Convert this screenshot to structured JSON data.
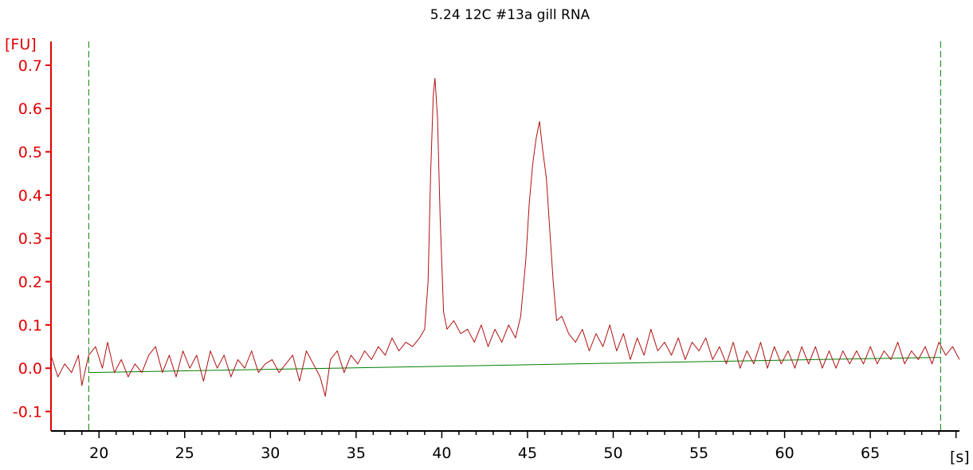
{
  "chart_data": {
    "type": "line",
    "title": "5.24 12C #13a gill RNA",
    "y_unit_label": "[FU]",
    "x_unit_label": "[s]",
    "xlim": [
      17.2,
      70.2
    ],
    "ylim": [
      -0.145,
      0.755
    ],
    "x_ticks": [
      20,
      25,
      30,
      35,
      40,
      45,
      50,
      55,
      60,
      65
    ],
    "y_ticks": [
      -0.1,
      0.0,
      0.1,
      0.2,
      0.3,
      0.4,
      0.5,
      0.6,
      0.7
    ],
    "y_tick_labels": [
      "-0.1",
      "0.0",
      "0.1",
      "0.2",
      "0.3",
      "0.4",
      "0.5",
      "0.6",
      "0.7"
    ],
    "x_tick_labels": [
      "20",
      "25",
      "30",
      "35",
      "40",
      "45",
      "50",
      "55",
      "60",
      "65"
    ],
    "grid": false,
    "markers": [
      19.4,
      69.1
    ],
    "colors": {
      "signal": "#b01010",
      "baseline": "#008000",
      "marker": "#008000",
      "y_axis": "#e00000",
      "x_axis": "#000000"
    },
    "peaks": [
      {
        "x": 39.6,
        "y": 0.67
      },
      {
        "x": 45.7,
        "y": 0.57
      }
    ],
    "baseline": {
      "start": [
        19.4,
        -0.01
      ],
      "end": [
        69.1,
        0.025
      ]
    },
    "series": [
      {
        "values": [
          [
            17.2,
            0.03
          ],
          [
            17.6,
            -0.02
          ],
          [
            18.0,
            0.01
          ],
          [
            18.4,
            -0.01
          ],
          [
            18.8,
            0.03
          ],
          [
            19.0,
            -0.04
          ],
          [
            19.4,
            0.03
          ],
          [
            19.8,
            0.05
          ],
          [
            20.2,
            0.0
          ],
          [
            20.5,
            0.06
          ],
          [
            20.9,
            -0.01
          ],
          [
            21.3,
            0.02
          ],
          [
            21.7,
            -0.02
          ],
          [
            22.1,
            0.01
          ],
          [
            22.5,
            -0.01
          ],
          [
            22.9,
            0.03
          ],
          [
            23.3,
            0.05
          ],
          [
            23.7,
            -0.01
          ],
          [
            24.1,
            0.03
          ],
          [
            24.5,
            -0.02
          ],
          [
            24.9,
            0.04
          ],
          [
            25.3,
            0.0
          ],
          [
            25.7,
            0.03
          ],
          [
            26.1,
            -0.03
          ],
          [
            26.5,
            0.04
          ],
          [
            26.9,
            0.0
          ],
          [
            27.3,
            0.03
          ],
          [
            27.7,
            -0.02
          ],
          [
            28.1,
            0.02
          ],
          [
            28.5,
            0.0
          ],
          [
            28.9,
            0.04
          ],
          [
            29.3,
            -0.01
          ],
          [
            29.7,
            0.01
          ],
          [
            30.1,
            0.02
          ],
          [
            30.5,
            -0.01
          ],
          [
            30.9,
            0.01
          ],
          [
            31.3,
            0.03
          ],
          [
            31.7,
            -0.03
          ],
          [
            32.1,
            0.04
          ],
          [
            32.5,
            0.01
          ],
          [
            32.9,
            -0.02
          ],
          [
            33.2,
            -0.065
          ],
          [
            33.5,
            0.02
          ],
          [
            33.9,
            0.04
          ],
          [
            34.3,
            -0.01
          ],
          [
            34.7,
            0.03
          ],
          [
            35.1,
            0.01
          ],
          [
            35.5,
            0.04
          ],
          [
            35.9,
            0.02
          ],
          [
            36.3,
            0.05
          ],
          [
            36.7,
            0.03
          ],
          [
            37.1,
            0.07
          ],
          [
            37.5,
            0.04
          ],
          [
            37.9,
            0.06
          ],
          [
            38.3,
            0.05
          ],
          [
            38.7,
            0.07
          ],
          [
            39.0,
            0.09
          ],
          [
            39.2,
            0.2
          ],
          [
            39.35,
            0.45
          ],
          [
            39.5,
            0.63
          ],
          [
            39.6,
            0.67
          ],
          [
            39.75,
            0.58
          ],
          [
            39.9,
            0.35
          ],
          [
            40.1,
            0.13
          ],
          [
            40.3,
            0.09
          ],
          [
            40.7,
            0.11
          ],
          [
            41.1,
            0.08
          ],
          [
            41.5,
            0.09
          ],
          [
            41.9,
            0.06
          ],
          [
            42.3,
            0.1
          ],
          [
            42.7,
            0.05
          ],
          [
            43.1,
            0.09
          ],
          [
            43.5,
            0.06
          ],
          [
            43.9,
            0.1
          ],
          [
            44.3,
            0.07
          ],
          [
            44.6,
            0.12
          ],
          [
            44.9,
            0.25
          ],
          [
            45.1,
            0.38
          ],
          [
            45.3,
            0.47
          ],
          [
            45.5,
            0.53
          ],
          [
            45.7,
            0.57
          ],
          [
            45.9,
            0.5
          ],
          [
            46.1,
            0.44
          ],
          [
            46.3,
            0.32
          ],
          [
            46.5,
            0.2
          ],
          [
            46.7,
            0.11
          ],
          [
            47.0,
            0.12
          ],
          [
            47.4,
            0.08
          ],
          [
            47.8,
            0.06
          ],
          [
            48.2,
            0.09
          ],
          [
            48.6,
            0.04
          ],
          [
            49.0,
            0.08
          ],
          [
            49.4,
            0.05
          ],
          [
            49.8,
            0.1
          ],
          [
            50.2,
            0.04
          ],
          [
            50.6,
            0.08
          ],
          [
            51.0,
            0.02
          ],
          [
            51.4,
            0.07
          ],
          [
            51.8,
            0.03
          ],
          [
            52.2,
            0.09
          ],
          [
            52.6,
            0.04
          ],
          [
            53.0,
            0.06
          ],
          [
            53.4,
            0.03
          ],
          [
            53.8,
            0.07
          ],
          [
            54.2,
            0.02
          ],
          [
            54.6,
            0.06
          ],
          [
            55.0,
            0.04
          ],
          [
            55.4,
            0.07
          ],
          [
            55.8,
            0.02
          ],
          [
            56.2,
            0.05
          ],
          [
            56.6,
            0.01
          ],
          [
            57.0,
            0.06
          ],
          [
            57.4,
            0.0
          ],
          [
            57.8,
            0.04
          ],
          [
            58.2,
            0.01
          ],
          [
            58.6,
            0.06
          ],
          [
            59.0,
            0.0
          ],
          [
            59.4,
            0.05
          ],
          [
            59.8,
            0.01
          ],
          [
            60.2,
            0.04
          ],
          [
            60.6,
            0.0
          ],
          [
            61.0,
            0.05
          ],
          [
            61.4,
            0.01
          ],
          [
            61.8,
            0.05
          ],
          [
            62.2,
            0.0
          ],
          [
            62.6,
            0.04
          ],
          [
            63.0,
            0.0
          ],
          [
            63.4,
            0.04
          ],
          [
            63.8,
            0.01
          ],
          [
            64.2,
            0.04
          ],
          [
            64.6,
            0.01
          ],
          [
            65.0,
            0.05
          ],
          [
            65.4,
            0.01
          ],
          [
            65.8,
            0.04
          ],
          [
            66.2,
            0.02
          ],
          [
            66.6,
            0.06
          ],
          [
            67.0,
            0.01
          ],
          [
            67.4,
            0.04
          ],
          [
            67.8,
            0.02
          ],
          [
            68.2,
            0.05
          ],
          [
            68.6,
            0.01
          ],
          [
            69.0,
            0.06
          ],
          [
            69.4,
            0.03
          ],
          [
            69.8,
            0.05
          ],
          [
            70.2,
            0.02
          ]
        ]
      }
    ]
  }
}
